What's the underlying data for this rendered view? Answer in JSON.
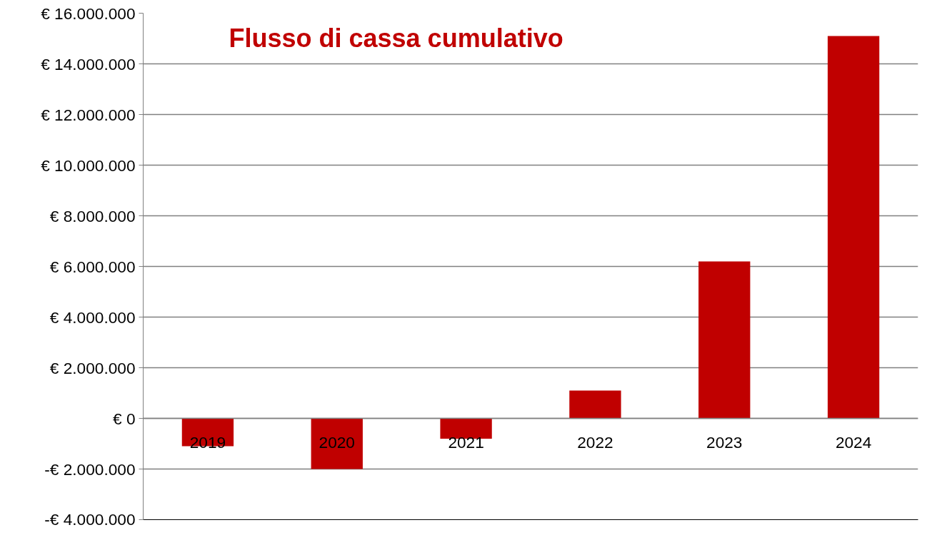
{
  "chart_data": {
    "type": "bar",
    "title": "Flusso di cassa cumulativo",
    "categories": [
      "2019",
      "2020",
      "2021",
      "2022",
      "2023",
      "2024"
    ],
    "values": [
      -1100000,
      -2000000,
      -800000,
      1100000,
      6200000,
      15100000
    ],
    "color": "#c00000",
    "ylim": [
      -4000000,
      16000000
    ],
    "yticks": [
      {
        "value": -4000000,
        "label": "-€ 4.000.000"
      },
      {
        "value": -2000000,
        "label": "-€ 2.000.000"
      },
      {
        "value": 0,
        "label": "€ 0"
      },
      {
        "value": 2000000,
        "label": "€ 2.000.000"
      },
      {
        "value": 4000000,
        "label": "€ 4.000.000"
      },
      {
        "value": 6000000,
        "label": "€ 6.000.000"
      },
      {
        "value": 8000000,
        "label": "€ 8.000.000"
      },
      {
        "value": 10000000,
        "label": "€ 10.000.000"
      },
      {
        "value": 12000000,
        "label": "€ 12.000.000"
      },
      {
        "value": 14000000,
        "label": "€ 14.000.000"
      },
      {
        "value": 16000000,
        "label": "€ 16.000.000"
      }
    ],
    "grid": "y"
  }
}
